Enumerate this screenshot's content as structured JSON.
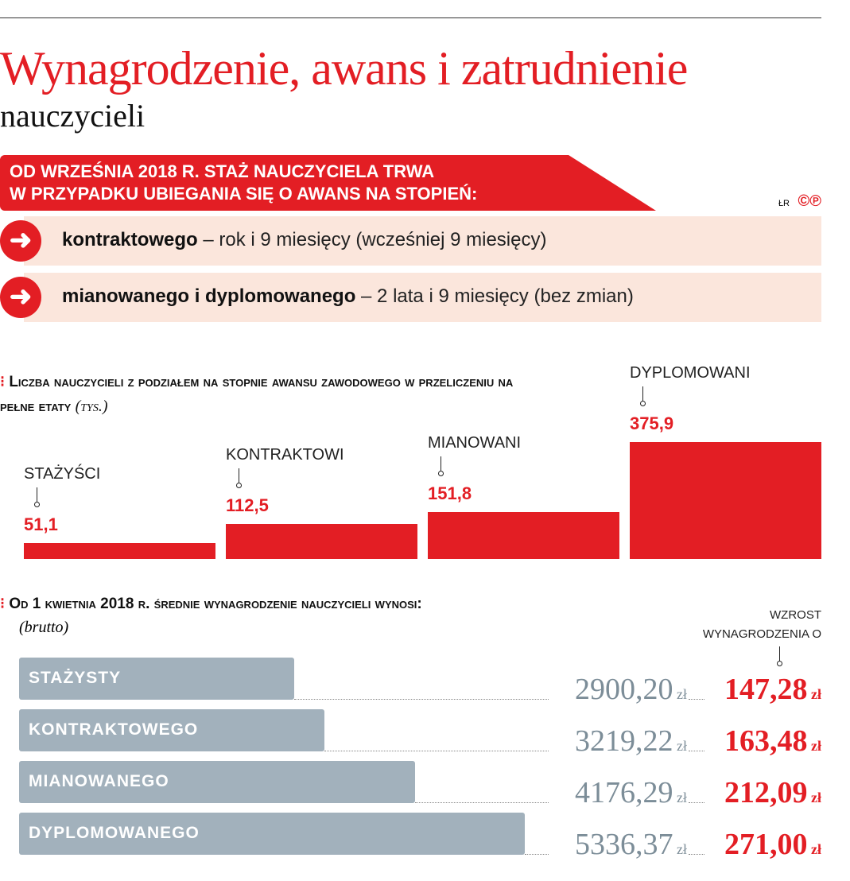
{
  "title": "Wynagrodzenie, awans i zatrudnienie",
  "subtitle": "nauczycieli",
  "banner": {
    "line1": "OD WRZEŚNIA 2018 R. STAŻ NAUCZYCIELA TRWA",
    "line2": "W PRZYPADKU UBIEGANIA SIĘ O AWANS NA STOPIEŃ:"
  },
  "credit": "ŁR",
  "copyright": "©℗",
  "rows": [
    {
      "bold": "kontraktowego",
      "rest": " – rok i 9 miesięcy (wcześniej 9 miesięcy)"
    },
    {
      "bold": "mianowanego i dyplomowanego",
      "rest": " – 2 lata i 9 miesięcy (bez zmian)"
    }
  ],
  "colors": {
    "accent": "#e31e24",
    "gray": "#a2b1bc",
    "pink": "#fbe6dc"
  },
  "chart_data": [
    {
      "type": "bar",
      "title": "Liczba nauczycieli z podziałem na stopnie awansu zawodowego w przeliczeniu na pełne etaty",
      "unit": "(tys.)",
      "categories": [
        "STAŻYŚCI",
        "KONTRAKTOWI",
        "MIANOWANI",
        "DYPLOMOWANI"
      ],
      "values": [
        51.1,
        112.5,
        151.8,
        375.9
      ],
      "labels": [
        "51,1",
        "112,5",
        "151,8",
        "375,9"
      ]
    },
    {
      "type": "bar",
      "orientation": "horizontal",
      "title": "Od 1 kwietnia 2018 r. średnie wynagrodzenie nauczycieli wynosi:",
      "subtitle": "(brutto)",
      "increase_header": "WZROST",
      "increase_header2": "WYNAGRODZENIA O",
      "currency": "zł",
      "categories": [
        "STAŻYSTY",
        "KONTRAKTOWEGO",
        "MIANOWANEGO",
        "DYPLOMOWANEGO"
      ],
      "values": [
        2900.2,
        3219.22,
        4176.29,
        5336.37
      ],
      "labels": [
        "2900,20",
        "3219,22",
        "4176,29",
        "5336,37"
      ],
      "increase": [
        147.28,
        163.48,
        212.09,
        271.0
      ],
      "increase_labels": [
        "147,28",
        "163,48",
        "212,09",
        "271,00"
      ]
    }
  ]
}
